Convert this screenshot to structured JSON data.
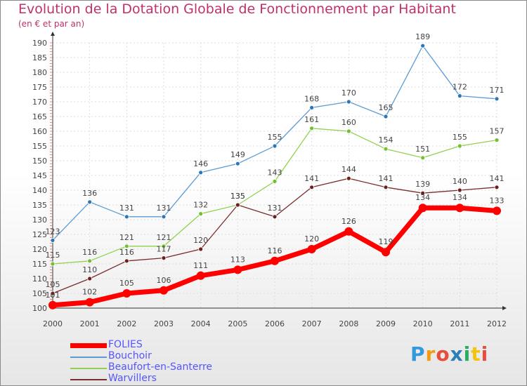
{
  "header": {
    "title": "Evolution de la Dotation Globale de Fonctionnement par Habitant",
    "subtitle": "(en € et par an)"
  },
  "chart_data": {
    "type": "line",
    "title": "Evolution de la Dotation Globale de Fonctionnement par Habitant",
    "subtitle": "(en € et par an)",
    "xlabel": "",
    "ylabel": "",
    "x": [
      2000,
      2001,
      2002,
      2003,
      2004,
      2005,
      2006,
      2007,
      2008,
      2009,
      2010,
      2011,
      2012
    ],
    "ylim": [
      100,
      190
    ],
    "yticks": [
      100,
      105,
      110,
      115,
      120,
      125,
      130,
      135,
      140,
      145,
      150,
      155,
      160,
      165,
      170,
      175,
      180,
      185,
      190
    ],
    "grid": true,
    "legend_position": "bottom-left",
    "series": [
      {
        "name": "Bouchoir",
        "color": "#5b9bd5",
        "marker": "#2e75b6",
        "values": [
          123,
          136,
          131,
          131,
          146,
          149,
          155,
          168,
          170,
          165,
          189,
          172,
          171
        ]
      },
      {
        "name": "Beaufort-en-Santerre",
        "color": "#92d050",
        "marker": "#70c030",
        "values": [
          115,
          116,
          121,
          121,
          132,
          135,
          143,
          161,
          160,
          154,
          151,
          155,
          157
        ]
      },
      {
        "name": "Warvillers",
        "color": "#7b2c2c",
        "marker": "#6b1f1f",
        "values": [
          105,
          110,
          116,
          117,
          120,
          135,
          131,
          141,
          144,
          141,
          139,
          140,
          141
        ]
      },
      {
        "name": "FOLIES",
        "color": "#ff0000",
        "marker": "#ff0000",
        "values": [
          101,
          102,
          105,
          106,
          111,
          113,
          116,
          120,
          126,
          119,
          134,
          134,
          133
        ]
      }
    ]
  },
  "legend": {
    "items": [
      {
        "name": "FOLIES",
        "color": "#ff0000"
      },
      {
        "name": "Bouchoir",
        "color": "#5b9bd5"
      },
      {
        "name": "Beaufort-en-Santerre",
        "color": "#92d050"
      },
      {
        "name": "Warvillers",
        "color": "#7b2c2c"
      }
    ]
  },
  "logo": {
    "letters": [
      {
        "ch": "P",
        "color": "#3399dd"
      },
      {
        "ch": "r",
        "color": "#f39c12"
      },
      {
        "ch": "o",
        "color": "#e74c3c"
      },
      {
        "ch": "x",
        "color": "#2980b9"
      },
      {
        "ch": "i",
        "color": "#27ae60"
      },
      {
        "ch": "t",
        "color": "#f1c40f"
      },
      {
        "ch": "i",
        "color": "#e74c3c"
      }
    ]
  }
}
